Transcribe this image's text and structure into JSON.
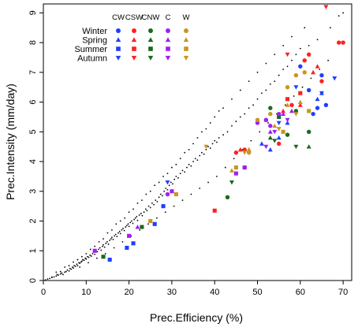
{
  "chart_data": {
    "type": "scatter",
    "xlabel": "Prec.Efficiency (%)",
    "ylabel": "Prec.Intensity (mm/day)",
    "xlim": [
      0,
      72
    ],
    "ylim": [
      0,
      9.3
    ],
    "xticks": [
      "0",
      "10",
      "20",
      "30",
      "40",
      "50",
      "60",
      "70"
    ],
    "yticks": [
      "0",
      "1",
      "2",
      "3",
      "4",
      "5",
      "6",
      "7",
      "8",
      "9"
    ],
    "legend": {
      "placement": "top-left",
      "regions": [
        "CW",
        "CSW",
        "CNW",
        "C",
        "W"
      ],
      "seasons": [
        "Winter",
        "Spring",
        "Summer",
        "Autumn"
      ],
      "region_colors": [
        "#1f3fff",
        "#ff2020",
        "#1a6a1a",
        "#a020f0",
        "#c8961e"
      ],
      "season_shapes": [
        "circle",
        "triangle-up",
        "square",
        "triangle-down"
      ]
    },
    "background_points": [
      [
        0.5,
        0.02
      ],
      [
        1,
        0.05
      ],
      [
        1.5,
        0.07
      ],
      [
        2,
        0.1
      ],
      [
        2.5,
        0.12
      ],
      [
        3,
        0.15
      ],
      [
        3.2,
        0.2
      ],
      [
        3.5,
        0.18
      ],
      [
        4,
        0.22
      ],
      [
        4.3,
        0.25
      ],
      [
        4.6,
        0.2
      ],
      [
        5,
        0.28
      ],
      [
        5.3,
        0.3
      ],
      [
        5.6,
        0.35
      ],
      [
        6,
        0.32
      ],
      [
        6.2,
        0.4
      ],
      [
        6.5,
        0.38
      ],
      [
        6.8,
        0.45
      ],
      [
        7,
        0.42
      ],
      [
        7.2,
        0.5
      ],
      [
        7.5,
        0.48
      ],
      [
        7.8,
        0.55
      ],
      [
        8,
        0.5
      ],
      [
        8.3,
        0.6
      ],
      [
        8.5,
        0.58
      ],
      [
        8.8,
        0.62
      ],
      [
        9,
        0.65
      ],
      [
        9.2,
        0.7
      ],
      [
        9.5,
        0.68
      ],
      [
        9.8,
        0.75
      ],
      [
        10,
        0.72
      ],
      [
        10.3,
        0.8
      ],
      [
        10.6,
        0.78
      ],
      [
        10.9,
        0.85
      ],
      [
        11.2,
        0.82
      ],
      [
        11.5,
        0.9
      ],
      [
        11.8,
        0.95
      ],
      [
        12,
        0.88
      ],
      [
        12.3,
        1.0
      ],
      [
        12.6,
        0.97
      ],
      [
        12.9,
        1.05
      ],
      [
        13.2,
        1.1
      ],
      [
        13.5,
        1.02
      ],
      [
        13.8,
        1.15
      ],
      [
        14,
        1.2
      ],
      [
        14.3,
        1.12
      ],
      [
        14.6,
        1.25
      ],
      [
        14.9,
        1.3
      ],
      [
        15.2,
        1.22
      ],
      [
        15.5,
        1.35
      ],
      [
        15.8,
        1.4
      ],
      [
        16,
        1.45
      ],
      [
        16.3,
        1.38
      ],
      [
        16.6,
        1.5
      ],
      [
        16.9,
        1.55
      ],
      [
        17.2,
        1.48
      ],
      [
        17.5,
        1.6
      ],
      [
        17.8,
        1.65
      ],
      [
        18,
        1.58
      ],
      [
        18.3,
        1.7
      ],
      [
        18.6,
        1.75
      ],
      [
        18.9,
        1.68
      ],
      [
        19.2,
        1.8
      ],
      [
        19.5,
        1.85
      ],
      [
        19.8,
        1.9
      ],
      [
        20,
        1.82
      ],
      [
        20.3,
        1.95
      ],
      [
        20.6,
        2.0
      ],
      [
        20.9,
        1.92
      ],
      [
        21.2,
        2.05
      ],
      [
        21.5,
        2.1
      ],
      [
        21.8,
        2.15
      ],
      [
        22,
        2.02
      ],
      [
        22.4,
        2.2
      ],
      [
        22.8,
        2.25
      ],
      [
        23.1,
        2.18
      ],
      [
        23.5,
        2.3
      ],
      [
        23.9,
        2.4
      ],
      [
        24.2,
        2.35
      ],
      [
        24.6,
        2.5
      ],
      [
        25,
        2.45
      ],
      [
        25.4,
        2.6
      ],
      [
        25.8,
        2.55
      ],
      [
        26.2,
        2.7
      ],
      [
        26.6,
        2.65
      ],
      [
        27,
        2.8
      ],
      [
        27.4,
        2.9
      ],
      [
        27.8,
        2.85
      ],
      [
        28.2,
        3.0
      ],
      [
        28.6,
        3.1
      ],
      [
        29,
        3.05
      ],
      [
        29.4,
        3.2
      ],
      [
        29.8,
        3.3
      ],
      [
        30.2,
        3.25
      ],
      [
        30.6,
        3.4
      ],
      [
        31,
        3.5
      ],
      [
        31.5,
        3.45
      ],
      [
        32,
        3.6
      ],
      [
        32.5,
        3.7
      ],
      [
        33,
        3.65
      ],
      [
        33.5,
        3.8
      ],
      [
        34,
        3.9
      ],
      [
        34.5,
        3.85
      ],
      [
        35,
        4.0
      ],
      [
        35.5,
        4.1
      ],
      [
        36,
        4.05
      ],
      [
        36.5,
        4.2
      ],
      [
        37,
        4.3
      ],
      [
        37.5,
        4.25
      ],
      [
        38,
        4.4
      ],
      [
        38.5,
        4.5
      ],
      [
        39,
        4.45
      ],
      [
        39.5,
        4.6
      ],
      [
        40,
        4.7
      ],
      [
        40.5,
        4.65
      ],
      [
        41,
        4.8
      ],
      [
        42,
        4.9
      ],
      [
        43,
        5.0
      ],
      [
        44,
        5.2
      ],
      [
        45,
        5.35
      ],
      [
        46,
        5.5
      ],
      [
        47,
        5.6
      ],
      [
        48,
        5.8
      ],
      [
        49,
        5.9
      ],
      [
        50,
        6.1
      ],
      [
        51,
        6.3
      ],
      [
        52,
        6.4
      ],
      [
        53,
        6.6
      ],
      [
        54,
        6.7
      ],
      [
        55,
        6.9
      ],
      [
        56,
        7.1
      ],
      [
        57,
        7.2
      ],
      [
        58,
        7.4
      ],
      [
        59,
        7.6
      ],
      [
        60,
        7.8
      ],
      [
        62,
        7.9
      ],
      [
        64,
        8.1
      ],
      [
        67,
        8.5
      ],
      [
        69,
        8.9
      ],
      [
        70,
        9.0
      ],
      [
        3,
        0.28
      ],
      [
        5,
        0.45
      ],
      [
        7,
        0.62
      ],
      [
        9,
        0.8
      ],
      [
        11,
        1.05
      ],
      [
        13,
        1.3
      ],
      [
        15,
        1.6
      ],
      [
        17,
        1.9
      ],
      [
        19,
        2.1
      ],
      [
        21,
        2.4
      ],
      [
        23,
        2.7
      ],
      [
        25,
        3.0
      ],
      [
        27,
        3.3
      ],
      [
        29,
        3.6
      ],
      [
        31,
        3.9
      ],
      [
        33,
        4.3
      ],
      [
        35,
        4.6
      ],
      [
        37,
        5.0
      ],
      [
        39,
        5.3
      ],
      [
        41,
        5.7
      ],
      [
        2,
        0.12
      ],
      [
        4,
        0.3
      ],
      [
        6,
        0.5
      ],
      [
        8,
        0.7
      ],
      [
        10,
        0.9
      ],
      [
        12,
        1.15
      ],
      [
        14,
        1.4
      ],
      [
        16,
        1.7
      ],
      [
        18,
        2.0
      ],
      [
        20,
        2.3
      ],
      [
        22,
        2.6
      ],
      [
        24,
        2.9
      ],
      [
        26,
        3.2
      ],
      [
        28,
        3.5
      ],
      [
        30,
        3.8
      ],
      [
        32,
        4.1
      ],
      [
        34,
        4.4
      ],
      [
        36,
        4.8
      ],
      [
        38,
        5.1
      ],
      [
        40,
        5.5
      ],
      [
        42,
        5.8
      ],
      [
        44,
        6.1
      ],
      [
        46,
        6.4
      ],
      [
        48,
        6.7
      ],
      [
        50,
        7.0
      ],
      [
        52,
        7.3
      ],
      [
        54,
        7.6
      ],
      [
        56,
        7.9
      ],
      [
        58,
        8.2
      ],
      [
        61,
        8.5
      ],
      [
        8.5,
        0.45
      ],
      [
        10.5,
        0.6
      ],
      [
        12.5,
        0.75
      ],
      [
        14.5,
        0.9
      ],
      [
        16.5,
        1.1
      ],
      [
        18.5,
        1.3
      ],
      [
        20.5,
        1.5
      ],
      [
        22.5,
        1.7
      ],
      [
        24.5,
        1.9
      ],
      [
        26.5,
        2.1
      ],
      [
        28.5,
        2.3
      ],
      [
        30.5,
        2.5
      ],
      [
        32.5,
        2.7
      ],
      [
        34.5,
        2.9
      ],
      [
        36.5,
        3.1
      ],
      [
        38.5,
        3.3
      ],
      [
        40.5,
        3.5
      ],
      [
        42.5,
        3.8
      ],
      [
        44.5,
        4.1
      ],
      [
        46.5,
        4.4
      ],
      [
        48.5,
        4.7
      ],
      [
        50.5,
        5.0
      ],
      [
        52.5,
        5.3
      ],
      [
        54.5,
        5.6
      ],
      [
        56.5,
        5.9
      ],
      [
        58.5,
        6.2
      ],
      [
        60.5,
        6.5
      ],
      [
        62.5,
        6.8
      ],
      [
        64.5,
        7.1
      ],
      [
        66.5,
        7.4
      ]
    ],
    "series": [
      {
        "region": "CW",
        "season": "Winter",
        "points": [
          [
            60,
            7.2
          ],
          [
            62,
            6.4
          ],
          [
            63,
            5.6
          ],
          [
            64,
            5.8
          ],
          [
            65,
            6.9
          ],
          [
            66,
            5.9
          ]
        ]
      },
      {
        "region": "CW",
        "season": "Spring",
        "points": [
          [
            51,
            4.6
          ],
          [
            53,
            4.4
          ],
          [
            55,
            4.8
          ],
          [
            57,
            5.3
          ],
          [
            64,
            6.1
          ],
          [
            65,
            6.3
          ]
        ]
      },
      {
        "region": "CW",
        "season": "Summer",
        "points": [
          [
            15.5,
            0.7
          ],
          [
            19.5,
            1.1
          ],
          [
            21,
            1.25
          ],
          [
            26,
            1.9
          ],
          [
            28,
            2.5
          ]
        ]
      },
      {
        "region": "CW",
        "season": "Autumn",
        "points": [
          [
            29,
            3.3
          ],
          [
            55,
            5.3
          ],
          [
            59,
            6.5
          ],
          [
            65,
            6.3
          ],
          [
            68,
            6.8
          ]
        ]
      },
      {
        "region": "CSW",
        "season": "Winter",
        "points": [
          [
            45,
            4.3
          ],
          [
            47,
            4.4
          ],
          [
            55,
            4.6
          ],
          [
            58,
            5.9
          ],
          [
            61,
            7.4
          ],
          [
            62,
            7.6
          ],
          [
            65,
            6.7
          ],
          [
            69,
            8.0
          ],
          [
            70,
            8.0
          ]
        ]
      },
      {
        "region": "CSW",
        "season": "Spring",
        "points": [
          [
            46,
            4.4
          ],
          [
            52,
            5.4
          ],
          [
            56,
            5.7
          ],
          [
            60,
            5.9
          ],
          [
            63,
            7.0
          ],
          [
            64,
            7.2
          ]
        ]
      },
      {
        "region": "CSW",
        "season": "Summer",
        "points": [
          [
            40,
            2.35
          ],
          [
            57,
            6.1
          ],
          [
            60,
            6.3
          ]
        ]
      },
      {
        "region": "CSW",
        "season": "Autumn",
        "points": [
          [
            57,
            7.6
          ],
          [
            66,
            9.2
          ]
        ]
      },
      {
        "region": "CNW",
        "season": "Winter",
        "points": [
          [
            43,
            2.8
          ],
          [
            57,
            4.9
          ],
          [
            62,
            5.0
          ],
          [
            59,
            5.7
          ],
          [
            53,
            5.8
          ]
        ]
      },
      {
        "region": "CNW",
        "season": "Spring",
        "points": [
          [
            53,
            4.8
          ],
          [
            62,
            4.5
          ]
        ]
      },
      {
        "region": "CNW",
        "season": "Summer",
        "points": [
          [
            14,
            0.8
          ],
          [
            23,
            1.8
          ],
          [
            55,
            5.5
          ]
        ]
      },
      {
        "region": "CNW",
        "season": "Autumn",
        "points": [
          [
            44,
            3.3
          ],
          [
            54,
            4.7
          ],
          [
            59,
            4.5
          ]
        ]
      },
      {
        "region": "C",
        "season": "Winter",
        "points": [
          [
            29,
            2.9
          ],
          [
            47,
            3.8
          ],
          [
            50,
            5.3
          ],
          [
            52,
            5.4
          ],
          [
            53,
            5.2
          ],
          [
            55,
            5.6
          ]
        ]
      },
      {
        "region": "C",
        "season": "Spring",
        "points": [
          [
            22,
            1.8
          ],
          [
            48,
            4.4
          ],
          [
            53,
            5.0
          ],
          [
            56,
            5.6
          ],
          [
            58,
            5.7
          ]
        ]
      },
      {
        "region": "C",
        "season": "Summer",
        "points": [
          [
            12,
            1.0
          ],
          [
            20,
            1.5
          ],
          [
            30,
            3.0
          ],
          [
            45,
            3.6
          ],
          [
            47,
            3.8
          ]
        ]
      },
      {
        "region": "C",
        "season": "Autumn",
        "points": [
          [
            52,
            4.5
          ],
          [
            54,
            5.0
          ],
          [
            57,
            5.4
          ]
        ]
      },
      {
        "region": "W",
        "season": "Winter",
        "points": [
          [
            48,
            4.3
          ],
          [
            50,
            5.4
          ],
          [
            53,
            5.6
          ],
          [
            57,
            6.5
          ],
          [
            59,
            6.9
          ],
          [
            61,
            7.0
          ]
        ]
      },
      {
        "region": "W",
        "season": "Spring",
        "points": [
          [
            44,
            3.7
          ],
          [
            48,
            4.4
          ],
          [
            54,
            5.2
          ],
          [
            57,
            5.9
          ],
          [
            60,
            6.0
          ]
        ]
      },
      {
        "region": "W",
        "season": "Summer",
        "points": [
          [
            25,
            2.0
          ],
          [
            31,
            2.9
          ],
          [
            45,
            3.8
          ],
          [
            56,
            5.0
          ],
          [
            62,
            5.7
          ]
        ]
      },
      {
        "region": "W",
        "season": "Autumn",
        "points": [
          [
            38,
            4.5
          ],
          [
            47,
            4.3
          ],
          [
            55,
            5.1
          ],
          [
            59,
            5.6
          ]
        ]
      }
    ]
  }
}
